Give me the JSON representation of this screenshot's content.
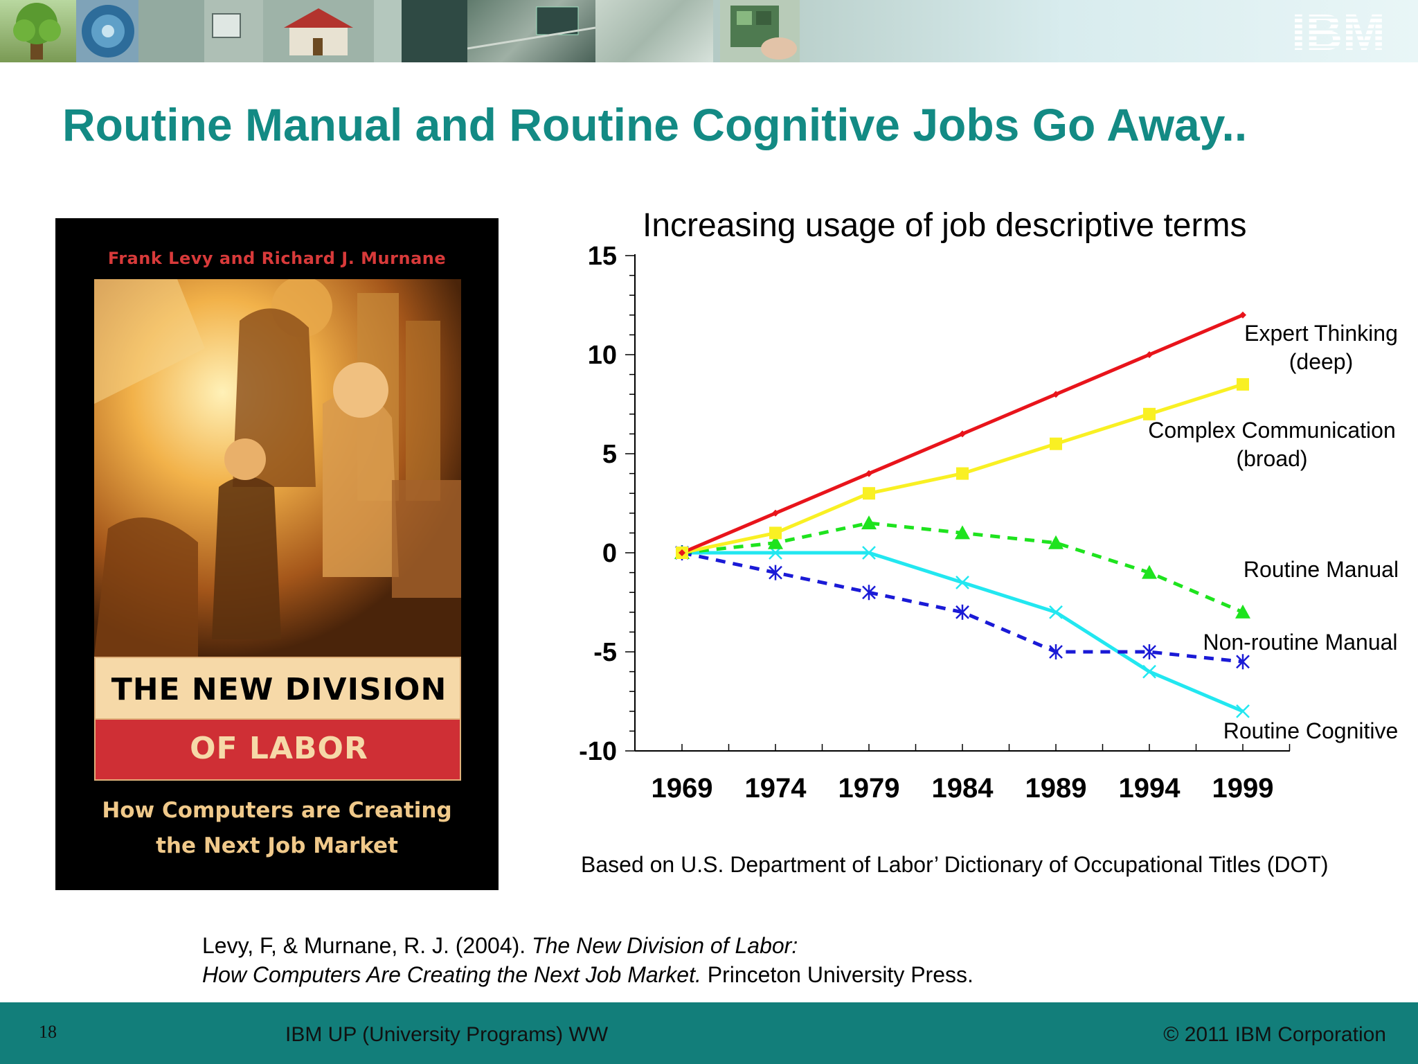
{
  "slide": {
    "title": "Routine Manual and Routine Cognitive Jobs Go Away..",
    "logo": "IBM",
    "source_note": "Based on U.S. Department of Labor’ Dictionary of Occupational Titles (DOT)"
  },
  "book": {
    "authors": "Frank Levy and Richard J. Murnane",
    "title_line1": "THE NEW DIVISION",
    "title_line2": "OF LABOR",
    "subtitle_line1": "How Computers are Creating",
    "subtitle_line2": "the Next Job Market"
  },
  "citation": {
    "line1_plain": "Levy, F, & Murnane, R. J. (2004). ",
    "line1_italic": "The New Division of Labor:",
    "line2_italic": "How Computers Are Creating the Next Job Market.",
    "line2_plain": " Princeton University Press."
  },
  "footer": {
    "page_number": "18",
    "center_text": "IBM UP (University Programs) WW",
    "copyright": "© 2011 IBM Corporation"
  },
  "chart_data": {
    "type": "line",
    "title": "Increasing usage of job descriptive terms",
    "x": [
      "1969",
      "1974",
      "1979",
      "1984",
      "1989",
      "1994",
      "1999"
    ],
    "ylim": [
      -10,
      15
    ],
    "yticks": [
      "15",
      "10",
      "5",
      "0",
      "-5",
      "-10"
    ],
    "grid": false,
    "series": [
      {
        "name": "Expert Thinking (deep)",
        "label_lines": [
          "Expert Thinking",
          "(deep)"
        ],
        "color": "#e8141b",
        "dash": false,
        "marker": "diamond",
        "values": [
          0,
          2,
          4,
          6,
          8,
          10,
          12
        ]
      },
      {
        "name": "Complex Communication (broad)",
        "label_lines": [
          "Complex Communication",
          "(broad)"
        ],
        "color": "#f9f023",
        "dash": false,
        "marker": "square",
        "values": [
          0,
          1,
          3,
          4,
          5.5,
          7,
          8.5
        ]
      },
      {
        "name": "Routine Manual",
        "label_lines": [
          "Routine Manual"
        ],
        "color": "#1ee31e",
        "dash": true,
        "marker": "triangle",
        "values": [
          0,
          0.5,
          1.5,
          1,
          0.5,
          -1,
          -3
        ]
      },
      {
        "name": "Non-routine Manual",
        "label_lines": [
          "Non-routine Manual"
        ],
        "color": "#1a1ad6",
        "dash": true,
        "marker": "asterisk",
        "values": [
          0,
          -1,
          -2,
          -3,
          -5,
          -5,
          -5.5
        ]
      },
      {
        "name": "Routine Cognitive",
        "label_lines": [
          "Routine Cognitive"
        ],
        "color": "#22e7f0",
        "dash": false,
        "marker": "x",
        "values": [
          0,
          0,
          0,
          -1.5,
          -3,
          -6,
          -8
        ]
      }
    ]
  }
}
